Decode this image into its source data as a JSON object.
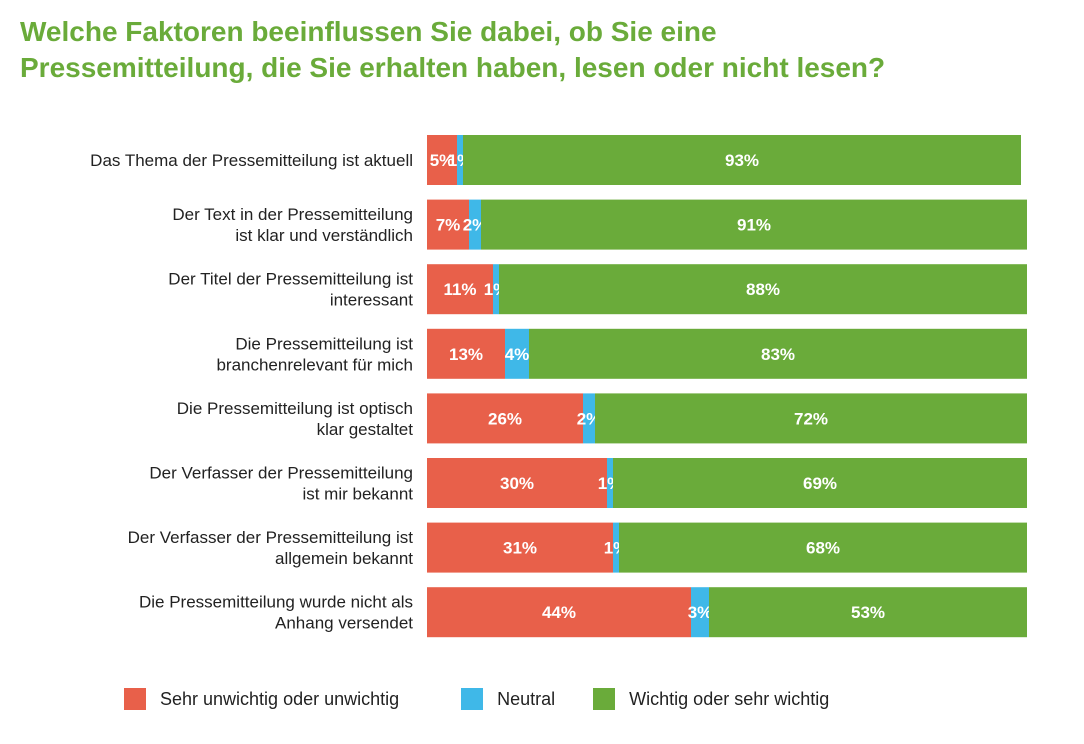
{
  "chart_data": {
    "type": "bar",
    "orientation": "horizontal",
    "stacked": true,
    "title_lines": [
      "Welche Faktoren beeinflussen Sie dabei, ob Sie eine",
      "Pressemitteilung, die Sie erhalten haben, lesen oder nicht lesen?"
    ],
    "categories": [
      [
        "Das Thema der Pressemitteilung ist aktuell"
      ],
      [
        "Der Text in der Pressemitteilung",
        "ist klar und verständlich"
      ],
      [
        "Der Titel der Pressemitteilung ist",
        "interessant"
      ],
      [
        "Die Pressemitteilung ist",
        "branchenrelevant für mich"
      ],
      [
        "Die Pressemitteilung ist optisch",
        "klar gestaltet"
      ],
      [
        "Der Verfasser der Pressemitteilung",
        "ist mir bekannt"
      ],
      [
        "Der Verfasser der Pressemitteilung ist",
        "allgemein bekannt"
      ],
      [
        "Die Pressemitteilung wurde nicht als",
        "Anhang versendet"
      ]
    ],
    "series": [
      {
        "name": "Sehr unwichtig oder unwichtig",
        "color": "#e8604a",
        "values": [
          5,
          7,
          11,
          13,
          26,
          30,
          31,
          44
        ]
      },
      {
        "name": "Neutral",
        "color": "#3fb8e8",
        "values": [
          1,
          2,
          1,
          4,
          2,
          1,
          1,
          3
        ]
      },
      {
        "name": "Wichtig oder sehr wichtig",
        "color": "#6aab3a",
        "values": [
          93,
          91,
          88,
          83,
          72,
          69,
          68,
          53
        ]
      }
    ],
    "value_suffix": "%",
    "xlim": [
      0,
      100
    ],
    "grid": false,
    "legend_position": "bottom"
  }
}
